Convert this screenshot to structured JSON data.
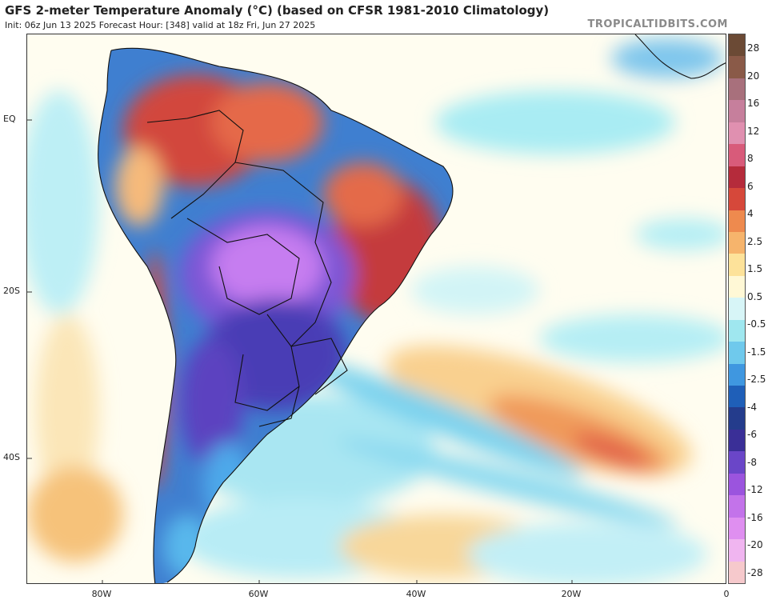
{
  "title": "GFS 2-meter Temperature Anomaly (°C) (based on CFSR 1981-2010 Climatology)",
  "subtitle": "Init: 06z Jun 13 2025   Forecast Hour: [348]   valid at 18z Fri, Jun 27 2025",
  "watermark": "TROPICALTIDBITS.COM",
  "lat_labels": [
    "EQ",
    "20S",
    "40S"
  ],
  "lon_labels": [
    "80W",
    "60W",
    "40W",
    "20W",
    "0"
  ],
  "colorbar": {
    "labels": [
      "28",
      "20",
      "16",
      "12",
      "8",
      "6",
      "4",
      "2.5",
      "1.5",
      "0.5",
      "-0.5",
      "-1.5",
      "-2.5",
      "-4",
      "-6",
      "-8",
      "-12",
      "-16",
      "-20",
      "-28"
    ],
    "colors": [
      "#6b4a35",
      "#8a5a48",
      "#a8707c",
      "#c67f9c",
      "#e090b0",
      "#d85b7a",
      "#b52b3b",
      "#d6483a",
      "#ee8a4e",
      "#f6b46c",
      "#fde29a",
      "#fff8d6",
      "#d7f5f7",
      "#9fe7ef",
      "#6fc9ec",
      "#3f97e0",
      "#1f5fb8",
      "#243c8c",
      "#3a2f97",
      "#6a46c8",
      "#9b54de",
      "#c373ea",
      "#df8ff0",
      "#f0b5f0",
      "#f6c9cc"
    ]
  },
  "legend_colors": {
    "ocean_base": "#c8f0f6",
    "land_base": "#3f7fd0",
    "very_cold": "#b25ae6",
    "cold": "#5b43c0",
    "warm": "#d8483a",
    "hot": "#c03040",
    "mild_warm": "#f8cc8a",
    "orange": "#ee8a4e"
  }
}
